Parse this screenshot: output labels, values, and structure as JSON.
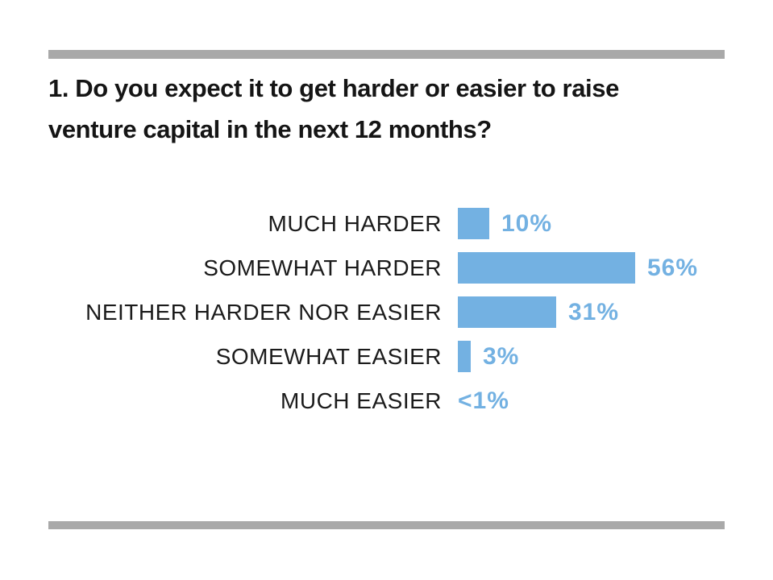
{
  "page": {
    "background_color": "#ffffff",
    "divider_color": "#a9a9a9",
    "accent_color": "#73b1e2",
    "text_color": "#1b1b1b"
  },
  "title_lines": [
    "1. Do you expect it to get harder or easier to raise",
    "venture capital in the next 12 months?"
  ],
  "chart_data": {
    "type": "bar",
    "orientation": "horizontal",
    "title": "1. Do you expect it to get harder or easier to raise venture capital in the next 12 months?",
    "categories": [
      "MUCH HARDER",
      "SOMEWHAT HARDER",
      "NEITHER HARDER NOR EASIER",
      "SOMEWHAT EASIER",
      "MUCH EASIER"
    ],
    "values": [
      10,
      56,
      31,
      3,
      0.5
    ],
    "value_labels": [
      "10%",
      "56%",
      "31%",
      "3%",
      "<1%"
    ],
    "bar_color": "#73b1e2",
    "value_label_color": "#73b1e2",
    "xlabel": "",
    "ylabel": "",
    "xlim": [
      0,
      60
    ],
    "grid": false,
    "legend": false
  }
}
